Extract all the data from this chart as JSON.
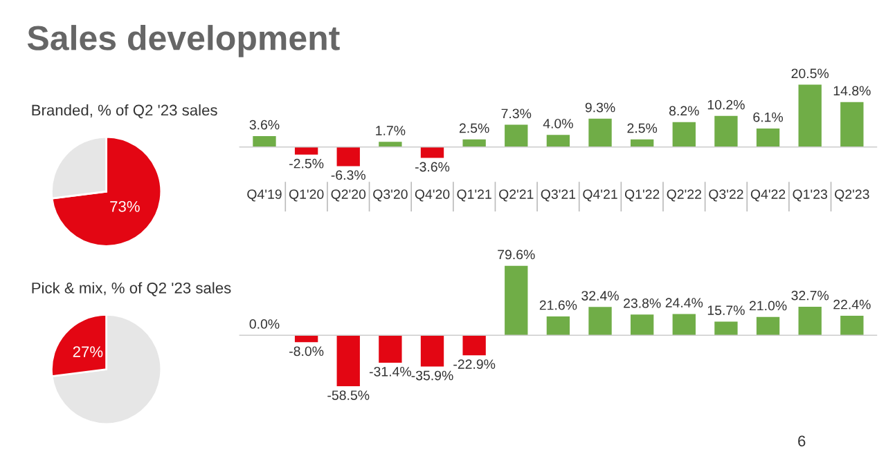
{
  "chart_data": [
    {
      "type": "pie",
      "title": "Branded, % of Q2 '23 sales",
      "annotations": [
        "Sales development"
      ],
      "categories": [
        null,
        null
      ],
      "values": [
        73,
        27
      ],
      "colors": [
        "#e30613",
        "#e6e6e6"
      ],
      "value_labels": [
        "73%",
        null
      ]
    },
    {
      "type": "bar",
      "categories": [
        "Q4'19",
        "Q1'20",
        "Q2'20",
        "Q3'20",
        "Q4'20",
        "Q1'21",
        "Q2'21",
        "Q3'21",
        "Q4'21",
        "Q1'22",
        "Q2'22",
        "Q3'22",
        "Q4'22",
        "Q1'23",
        "Q2'23"
      ],
      "values": [
        3.6,
        -2.5,
        -6.3,
        1.7,
        -3.6,
        2.5,
        7.3,
        4.0,
        9.3,
        2.5,
        8.2,
        10.2,
        6.1,
        20.5,
        14.8
      ],
      "colors": [
        "#70ad47",
        "#e30613",
        "#e30613",
        "#70ad47",
        "#e30613",
        "#70ad47",
        "#70ad47",
        "#70ad47",
        "#70ad47",
        "#70ad47",
        "#70ad47",
        "#70ad47",
        "#70ad47",
        "#70ad47",
        "#70ad47"
      ],
      "value_labels": [
        "3.6%",
        "-2.5%",
        "-6.3%",
        "1.7%",
        "-3.6%",
        "2.5%",
        "7.3%",
        "4.0%",
        "9.3%",
        "2.5%",
        "8.2%",
        "10.2%",
        "6.1%",
        "20.5%",
        "14.8%"
      ]
    },
    {
      "type": "pie",
      "title": "Pick & mix, % of Q2 '23 sales",
      "categories": [
        null,
        null
      ],
      "values": [
        73,
        27
      ],
      "colors": [
        "#e6e6e6",
        "#e30613"
      ],
      "value_labels": [
        null,
        "27%"
      ]
    },
    {
      "type": "bar",
      "categories": [
        null,
        null,
        null,
        null,
        null,
        null,
        null,
        null,
        null,
        null,
        null,
        null,
        null,
        null,
        null
      ],
      "values": [
        0.0,
        -8.0,
        -58.5,
        -31.4,
        -35.9,
        -22.9,
        79.6,
        21.6,
        32.4,
        23.8,
        24.4,
        15.7,
        21.0,
        32.7,
        22.4
      ],
      "colors": [
        "#70ad47",
        "#e30613",
        "#e30613",
        "#e30613",
        "#e30613",
        "#e30613",
        "#70ad47",
        "#70ad47",
        "#70ad47",
        "#70ad47",
        "#70ad47",
        "#70ad47",
        "#70ad47",
        "#70ad47",
        "#70ad47"
      ],
      "value_labels": [
        "0.0%",
        "-8.0%",
        "-58.5%",
        "-31.4%",
        "-35.9%",
        "-22.9%",
        "79.6%",
        "21.6%",
        "32.4%",
        "23.8%",
        "24.4%",
        "15.7%",
        "21.0%",
        "32.7%",
        "22.4%"
      ],
      "annotations": [
        "6"
      ]
    }
  ]
}
